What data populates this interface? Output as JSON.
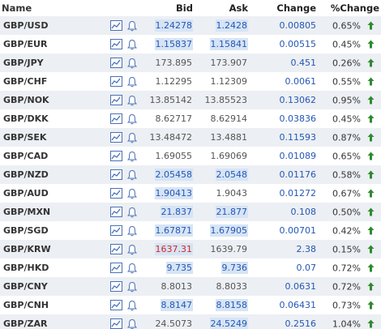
{
  "header": {
    "name": "Name",
    "bid": "Bid",
    "ask": "Ask",
    "change": "Change",
    "pct_change": "%Change"
  },
  "colors": {
    "blue": "#2457b5",
    "gray": "#555555",
    "red": "#d42424",
    "highlight": "#d6e4f5",
    "up_arrow": "#2e8b2e",
    "icon": "#4a70b8"
  },
  "icons": [
    "chart-line-icon",
    "bell-icon",
    "arrow-up-icon"
  ],
  "rows": [
    {
      "name": "GBP/USD",
      "bid": "1.24278",
      "ask": "1.2428",
      "change": "0.00805",
      "pct": "0.65%",
      "bid_color": "blue",
      "ask_color": "blue",
      "bid_hl": true,
      "ask_hl": true
    },
    {
      "name": "GBP/EUR",
      "bid": "1.15837",
      "ask": "1.15841",
      "change": "0.00515",
      "pct": "0.45%",
      "bid_color": "blue",
      "ask_color": "blue",
      "bid_hl": true,
      "ask_hl": true
    },
    {
      "name": "GBP/JPY",
      "bid": "173.895",
      "ask": "173.907",
      "change": "0.451",
      "pct": "0.26%",
      "bid_color": "gray",
      "ask_color": "gray",
      "bid_hl": false,
      "ask_hl": false
    },
    {
      "name": "GBP/CHF",
      "bid": "1.12295",
      "ask": "1.12309",
      "change": "0.0061",
      "pct": "0.55%",
      "bid_color": "gray",
      "ask_color": "gray",
      "bid_hl": false,
      "ask_hl": false
    },
    {
      "name": "GBP/NOK",
      "bid": "13.85142",
      "ask": "13.85523",
      "change": "0.13062",
      "pct": "0.95%",
      "bid_color": "gray",
      "ask_color": "gray",
      "bid_hl": false,
      "ask_hl": false
    },
    {
      "name": "GBP/DKK",
      "bid": "8.62717",
      "ask": "8.62914",
      "change": "0.03836",
      "pct": "0.45%",
      "bid_color": "gray",
      "ask_color": "gray",
      "bid_hl": false,
      "ask_hl": false
    },
    {
      "name": "GBP/SEK",
      "bid": "13.48472",
      "ask": "13.4881",
      "change": "0.11593",
      "pct": "0.87%",
      "bid_color": "gray",
      "ask_color": "gray",
      "bid_hl": false,
      "ask_hl": false
    },
    {
      "name": "GBP/CAD",
      "bid": "1.69055",
      "ask": "1.69069",
      "change": "0.01089",
      "pct": "0.65%",
      "bid_color": "gray",
      "ask_color": "gray",
      "bid_hl": false,
      "ask_hl": false
    },
    {
      "name": "GBP/NZD",
      "bid": "2.05458",
      "ask": "2.0548",
      "change": "0.01176",
      "pct": "0.58%",
      "bid_color": "blue",
      "ask_color": "blue",
      "bid_hl": true,
      "ask_hl": true
    },
    {
      "name": "GBP/AUD",
      "bid": "1.90413",
      "ask": "1.9043",
      "change": "0.01272",
      "pct": "0.67%",
      "bid_color": "blue",
      "ask_color": "gray",
      "bid_hl": true,
      "ask_hl": false
    },
    {
      "name": "GBP/MXN",
      "bid": "21.837",
      "ask": "21.877",
      "change": "0.108",
      "pct": "0.50%",
      "bid_color": "blue",
      "ask_color": "blue",
      "bid_hl": true,
      "ask_hl": true
    },
    {
      "name": "GBP/SGD",
      "bid": "1.67871",
      "ask": "1.67905",
      "change": "0.00701",
      "pct": "0.42%",
      "bid_color": "blue",
      "ask_color": "blue",
      "bid_hl": true,
      "ask_hl": true
    },
    {
      "name": "GBP/KRW",
      "bid": "1637.31",
      "ask": "1639.79",
      "change": "2.38",
      "pct": "0.15%",
      "bid_color": "red",
      "ask_color": "gray",
      "bid_hl": true,
      "ask_hl": false
    },
    {
      "name": "GBP/HKD",
      "bid": "9.735",
      "ask": "9.736",
      "change": "0.07",
      "pct": "0.72%",
      "bid_color": "blue",
      "ask_color": "blue",
      "bid_hl": true,
      "ask_hl": true
    },
    {
      "name": "GBP/CNY",
      "bid": "8.8013",
      "ask": "8.8033",
      "change": "0.0631",
      "pct": "0.72%",
      "bid_color": "gray",
      "ask_color": "gray",
      "bid_hl": false,
      "ask_hl": false
    },
    {
      "name": "GBP/CNH",
      "bid": "8.8147",
      "ask": "8.8158",
      "change": "0.06431",
      "pct": "0.73%",
      "bid_color": "blue",
      "ask_color": "blue",
      "bid_hl": true,
      "ask_hl": true
    },
    {
      "name": "GBP/ZAR",
      "bid": "24.5073",
      "ask": "24.5249",
      "change": "0.2516",
      "pct": "1.04%",
      "bid_color": "gray",
      "ask_color": "blue",
      "bid_hl": false,
      "ask_hl": true
    }
  ]
}
